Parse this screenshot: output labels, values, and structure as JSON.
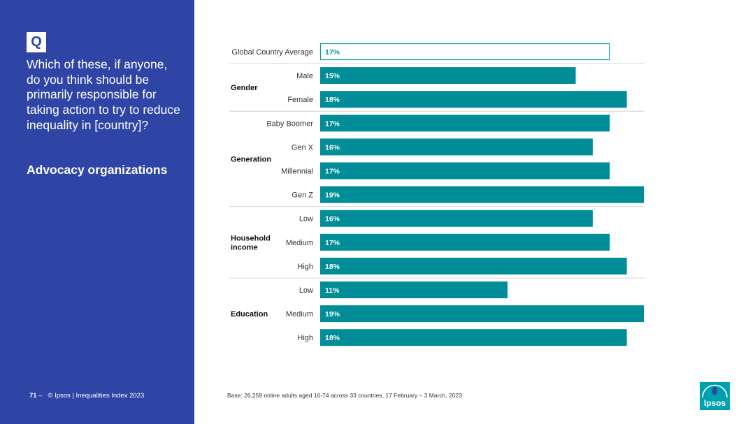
{
  "question": {
    "badge": "Q",
    "text": "Which of these, if anyone, do you think should be primarily responsible for taking action to try to reduce inequality in [country]?",
    "subtitle": "Advocacy organizations"
  },
  "footer": {
    "page": "71",
    "separator": "–",
    "copyright": "© Ipsos | Inequalities Index 2023",
    "base": "Base: 26,259 online adults aged 16-74 across 33 countries, 17 February – 3 March, 2023"
  },
  "logo": {
    "text": "Ipsos"
  },
  "colors": {
    "panel": "#2f45a5",
    "bar": "#008d98",
    "highlight": "#009aa6",
    "logo": "#00a1ae"
  },
  "chart_data": {
    "type": "bar",
    "orientation": "horizontal",
    "value_suffix": "%",
    "xlim": [
      0,
      19
    ],
    "rows": [
      {
        "group": "",
        "label": "Global Country Average",
        "value": 17,
        "highlight": true
      },
      {
        "group": "Gender",
        "label": "Male",
        "value": 15
      },
      {
        "group": "Gender",
        "label": "Female",
        "value": 18
      },
      {
        "group": "Generation",
        "label": "Baby Boomer",
        "value": 17
      },
      {
        "group": "Generation",
        "label": "Gen X",
        "value": 16
      },
      {
        "group": "Generation",
        "label": "Millennial",
        "value": 17
      },
      {
        "group": "Generation",
        "label": "Gen Z",
        "value": 19
      },
      {
        "group": "Household income",
        "label": "Low",
        "value": 16
      },
      {
        "group": "Household income",
        "label": "Medium",
        "value": 17
      },
      {
        "group": "Household income",
        "label": "High",
        "value": 18
      },
      {
        "group": "Education",
        "label": "Low",
        "value": 11
      },
      {
        "group": "Education",
        "label": "Medium",
        "value": 19
      },
      {
        "group": "Education",
        "label": "High",
        "value": 18
      }
    ],
    "groups": [
      {
        "name": "Gender",
        "lines": [
          "Gender"
        ]
      },
      {
        "name": "Generation",
        "lines": [
          "Generation"
        ]
      },
      {
        "name": "Household income",
        "lines": [
          "Household",
          "income"
        ]
      },
      {
        "name": "Education",
        "lines": [
          "Education"
        ]
      }
    ]
  }
}
